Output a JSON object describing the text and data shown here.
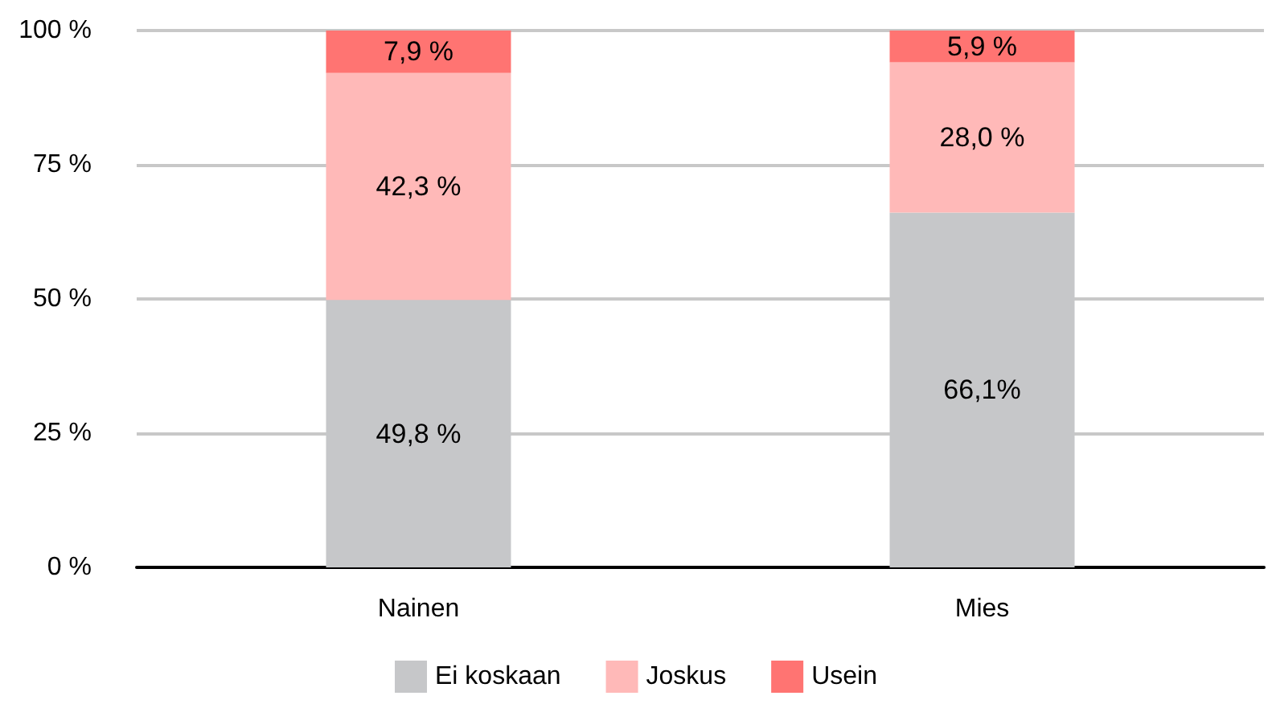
{
  "chart_data": {
    "type": "bar",
    "stacked": true,
    "categories": [
      "Nainen",
      "Mies"
    ],
    "series": [
      {
        "name": "Ei koskaan",
        "color": "#c6c7c9",
        "values": [
          49.8,
          66.1
        ],
        "value_labels": [
          "49,8 %",
          "66,1%"
        ]
      },
      {
        "name": "Joskus",
        "color": "#ffb9b8",
        "values": [
          42.3,
          28.0
        ],
        "value_labels": [
          "42,3 %",
          "28,0 %"
        ]
      },
      {
        "name": "Usein",
        "color": "#ff7472",
        "values": [
          7.9,
          5.9
        ],
        "value_labels": [
          "7,9 %",
          "5,9 %"
        ]
      }
    ],
    "ylim": [
      0,
      100
    ],
    "yticks": [
      {
        "value": 0,
        "label": "0 %"
      },
      {
        "value": 25,
        "label": "25 %"
      },
      {
        "value": 50,
        "label": "50 %"
      },
      {
        "value": 75,
        "label": "75 %"
      },
      {
        "value": 100,
        "label": "100 %"
      }
    ],
    "grid": "y",
    "legend": "bottom"
  }
}
